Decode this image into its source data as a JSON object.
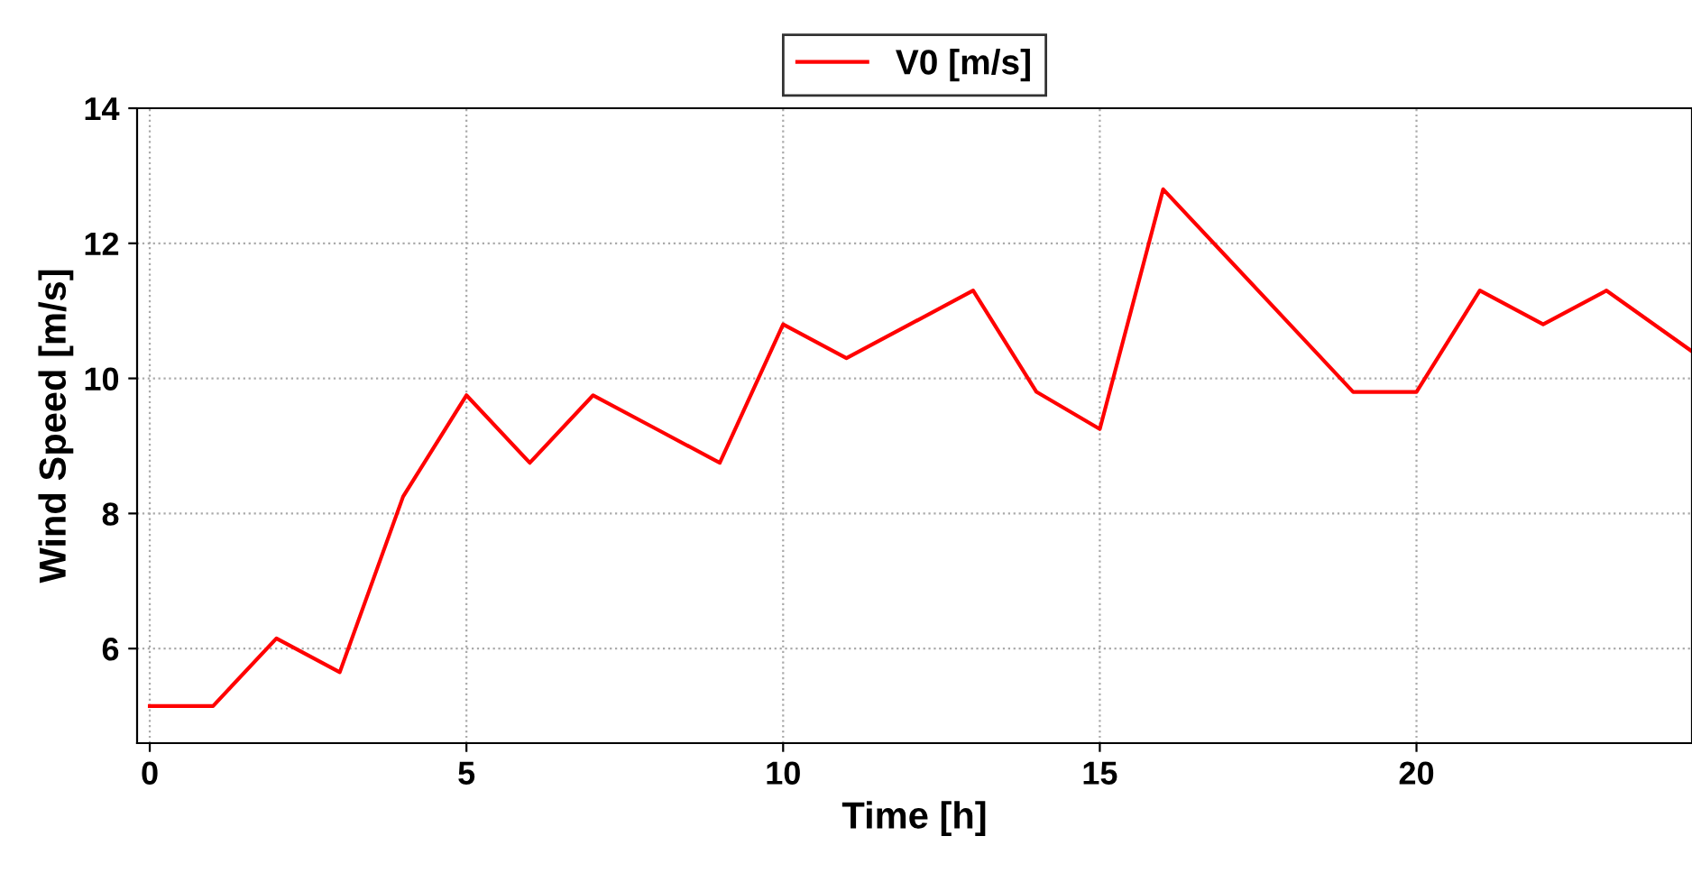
{
  "chart_data": {
    "type": "line",
    "xlabel": "Time [h]",
    "ylabel": "Wind Speed [m/s]",
    "x": [
      0,
      1,
      2,
      3,
      4,
      5,
      6,
      7,
      8,
      9,
      10,
      11,
      12,
      13,
      14,
      15,
      16,
      17,
      18,
      19,
      20,
      21,
      22,
      23,
      24.35
    ],
    "series": [
      {
        "name": "V0 [m/s]",
        "color": "#ff0000",
        "values": [
          5.15,
          5.15,
          6.15,
          5.65,
          8.25,
          9.75,
          8.75,
          9.75,
          9.25,
          8.75,
          10.8,
          10.3,
          10.8,
          11.3,
          9.8,
          9.25,
          12.8,
          11.8,
          10.8,
          9.8,
          9.8,
          11.3,
          10.8,
          11.3,
          10.4
        ]
      }
    ],
    "xlim": [
      -0.2,
      24.35
    ],
    "ylim": [
      4.6,
      14
    ],
    "xticks": [
      0,
      5,
      10,
      15,
      20
    ],
    "yticks": [
      6,
      8,
      10,
      12,
      14
    ],
    "grid": true,
    "legend": "top",
    "marker": "none",
    "line_style": "solid"
  }
}
